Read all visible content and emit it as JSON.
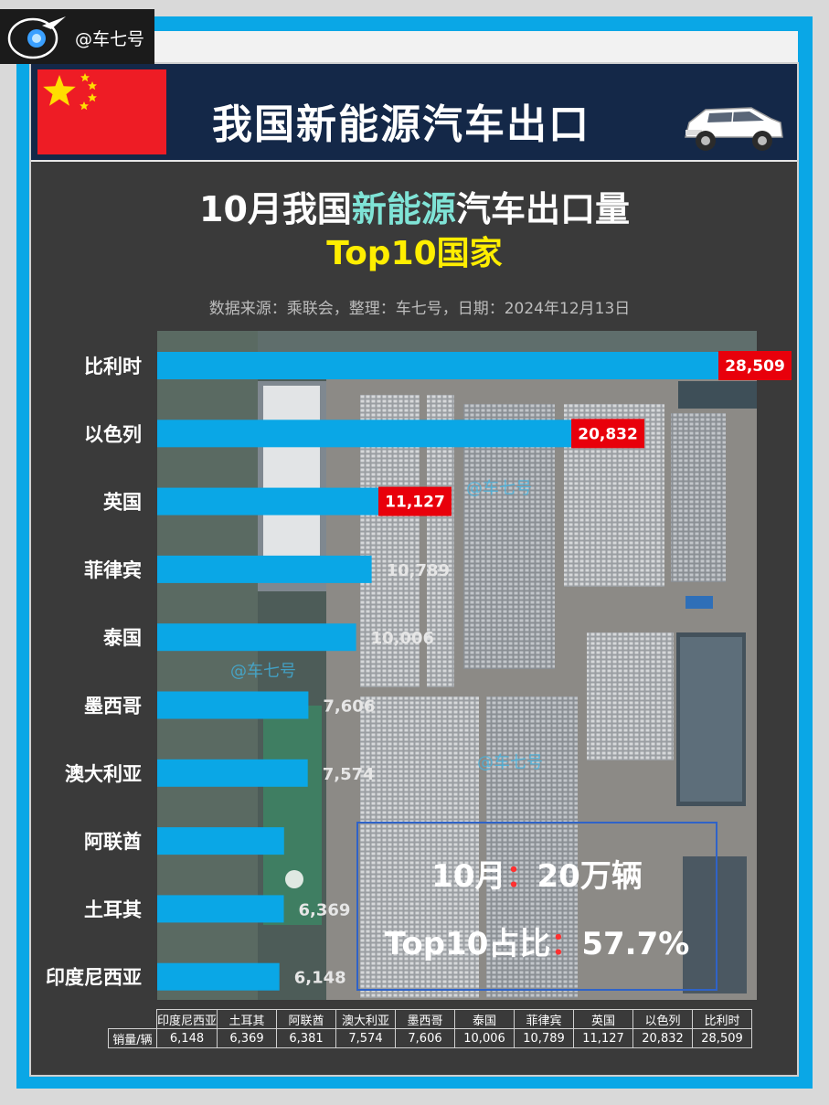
{
  "watermark": {
    "handle": "@车七号",
    "overlay_text": "@车七号"
  },
  "header": {
    "title": "我国新能源汽车出口"
  },
  "chart_data": {
    "type": "bar",
    "orientation": "horizontal",
    "title_parts": [
      "10月我国",
      "新能源",
      "汽车出口量"
    ],
    "subtitle": "Top10国家",
    "source": "数据来源：乘联会，整理：车七号，日期：2024年12月13日",
    "categories": [
      "比利时",
      "以色列",
      "英国",
      "菲律宾",
      "泰国",
      "墨西哥",
      "澳大利亚",
      "阿联酋",
      "土耳其",
      "印度尼西亚"
    ],
    "values": [
      28509,
      20832,
      11127,
      10789,
      10006,
      7606,
      7574,
      6381,
      6369,
      6148
    ],
    "labels": [
      "28,509",
      "20,832",
      "11,127",
      "10,789",
      "10,006",
      "7,606",
      "7,574",
      "",
      "6,369",
      "6,148"
    ],
    "highlighted_top": 3,
    "xlim": [
      0,
      28509
    ],
    "bar_color": "#0aa7e6",
    "highlight_label_color": "#e8000b"
  },
  "summary": {
    "line1_label": "10月",
    "line1_value": "20万辆",
    "line2_label": "Top10占比",
    "line2_value": "57.7%",
    "colon": "："
  },
  "table": {
    "row_header": "销量/辆",
    "columns": [
      "印度尼西亚",
      "土耳其",
      "阿联酋",
      "澳大利亚",
      "墨西哥",
      "泰国",
      "菲律宾",
      "英国",
      "以色列",
      "比利时"
    ],
    "values": [
      "6,148",
      "6,369",
      "6,381",
      "7,574",
      "7,606",
      "10,006",
      "10,789",
      "11,127",
      "20,832",
      "28,509"
    ]
  }
}
